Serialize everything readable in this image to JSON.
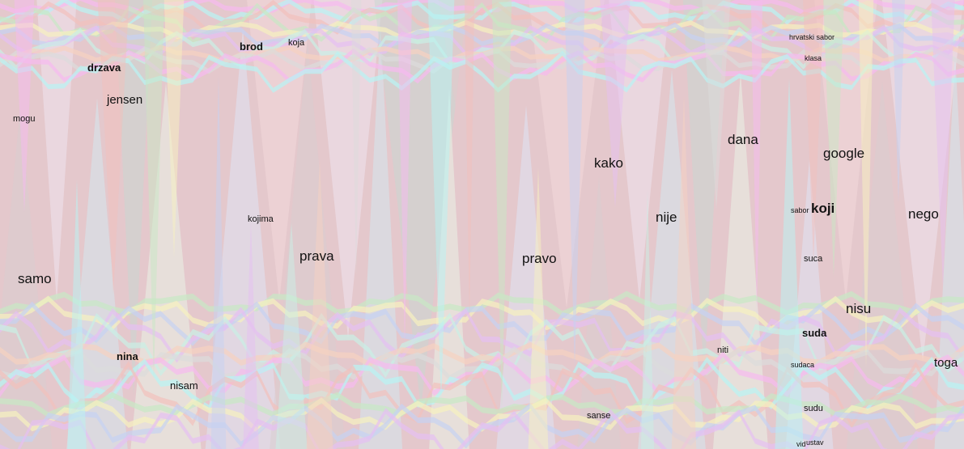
{
  "chart_data": {
    "type": "area",
    "subtype": "streamgraph",
    "title": "",
    "xlabel": "",
    "ylabel": "",
    "grid": false,
    "legend": "none",
    "background_colors": [
      "#e4c8cc",
      "#d8cdd0",
      "#c9d7d2",
      "#dfe4f4",
      "#efe3ef",
      "#e9f3e6",
      "#f2d9da",
      "#d3e8ef"
    ],
    "ridge_colors": [
      "#f6b9f0",
      "#b8f4f4",
      "#f2c0bc",
      "#c8e8c4",
      "#f7f1bf",
      "#c6d2f2",
      "#e6bff2",
      "#c9f0e6",
      "#f6d2c1",
      "#dcdcdc"
    ],
    "labels": [
      {
        "text": "samo",
        "weight": "normal",
        "size": "large",
        "color": "#111111"
      },
      {
        "text": "drzava",
        "weight": "bold",
        "size": "small",
        "color": "#111111"
      },
      {
        "text": "jensen",
        "weight": "normal",
        "size": "medium",
        "color": "#111111"
      },
      {
        "text": "mogu",
        "weight": "normal",
        "size": "tiny",
        "color": "#222222"
      },
      {
        "text": "nina",
        "weight": "bold",
        "size": "small",
        "color": "#111111"
      },
      {
        "text": "nisam",
        "weight": "normal",
        "size": "small",
        "color": "#333333"
      },
      {
        "text": "brod",
        "weight": "bold",
        "size": "small",
        "color": "#111111"
      },
      {
        "text": "koja",
        "weight": "normal",
        "size": "tiny",
        "color": "#222222"
      },
      {
        "text": "kojima",
        "weight": "normal",
        "size": "tiny",
        "color": "#222222"
      },
      {
        "text": "prava",
        "weight": "normal",
        "size": "large",
        "color": "#111111"
      },
      {
        "text": "pravo",
        "weight": "normal",
        "size": "large",
        "color": "#111111"
      },
      {
        "text": "sanse",
        "weight": "normal",
        "size": "tiny",
        "color": "#333333"
      },
      {
        "text": "kako",
        "weight": "normal",
        "size": "large",
        "color": "#111111"
      },
      {
        "text": "nije",
        "weight": "normal",
        "size": "large",
        "color": "#111111"
      },
      {
        "text": "dana",
        "weight": "normal",
        "size": "large",
        "color": "#111111"
      },
      {
        "text": "niti",
        "weight": "normal",
        "size": "tiny",
        "color": "#333333"
      },
      {
        "text": "hrvatski sabor",
        "weight": "normal",
        "size": "micro",
        "color": "#333333"
      },
      {
        "text": "klasa",
        "weight": "normal",
        "size": "micro",
        "color": "#333333"
      },
      {
        "text": "sabor",
        "weight": "normal",
        "size": "micro",
        "color": "#333333"
      },
      {
        "text": "koji",
        "weight": "bold",
        "size": "large",
        "color": "#111111"
      },
      {
        "text": "suca",
        "weight": "normal",
        "size": "tiny",
        "color": "#444444"
      },
      {
        "text": "suda",
        "weight": "bold",
        "size": "small",
        "color": "#111111"
      },
      {
        "text": "sudaca",
        "weight": "normal",
        "size": "micro",
        "color": "#333333"
      },
      {
        "text": "sudu",
        "weight": "normal",
        "size": "tiny",
        "color": "#333333"
      },
      {
        "text": "vid",
        "weight": "normal",
        "size": "micro",
        "color": "#333333"
      },
      {
        "text": "ustav",
        "weight": "normal",
        "size": "micro",
        "color": "#333333"
      },
      {
        "text": "google",
        "weight": "normal",
        "size": "large",
        "color": "#111111"
      },
      {
        "text": "nisu",
        "weight": "normal",
        "size": "large",
        "color": "#111111"
      },
      {
        "text": "nego",
        "weight": "normal",
        "size": "large",
        "color": "#111111"
      },
      {
        "text": "toga",
        "weight": "normal",
        "size": "medium",
        "color": "#111111"
      }
    ]
  }
}
